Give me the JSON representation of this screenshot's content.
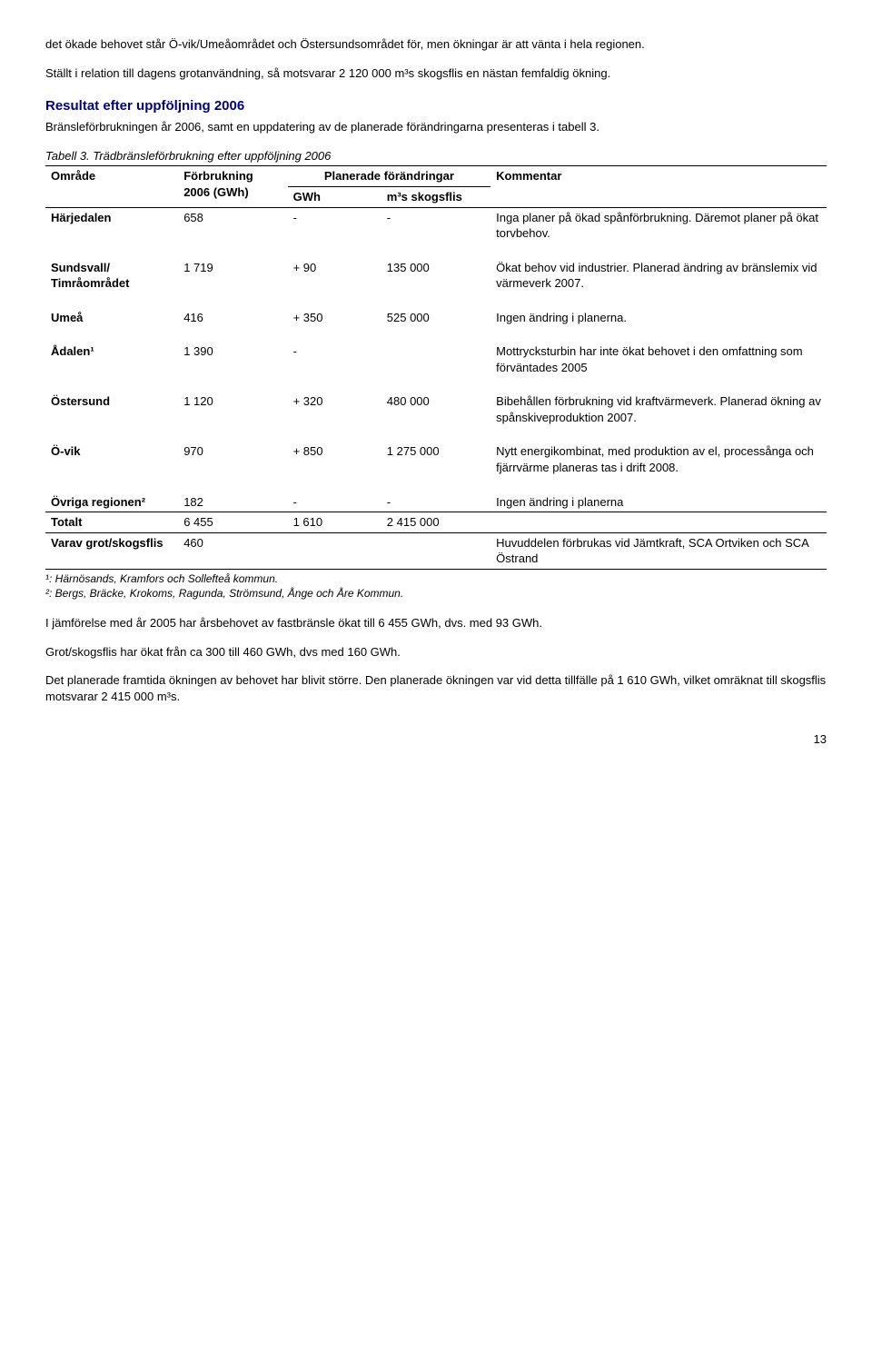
{
  "intro": {
    "p1": "det ökade behovet står Ö-vik/Umeåområdet och Östersundsområdet för, men ökningar är att vänta i hela regionen.",
    "p2": "Ställt i relation till dagens grotanvändning, så motsvarar 2 120 000 m³s skogsflis en nästan femfaldig ökning."
  },
  "section": {
    "title": "Resultat efter uppföljning 2006",
    "body": "Bränsleförbrukningen år 2006, samt en uppdatering av de planerade förändringarna presenteras i tabell 3."
  },
  "table": {
    "caption": "Tabell 3. Trädbränsleförbrukning efter uppföljning 2006",
    "head": {
      "area": "Område",
      "cons": "Förbrukning 2006 (GWh)",
      "changes": "Planerade förändringar",
      "gwh": "GWh",
      "m3s": "m³s skogsflis",
      "comment": "Kommentar"
    },
    "rows": [
      {
        "area": "Härjedalen",
        "cons": "658",
        "gwh": "-",
        "m3s": "-",
        "comment": "Inga planer på ökad spånförbrukning. Däremot planer på ökat torvbehov."
      },
      {
        "area": "Sundsvall/ Timråområdet",
        "cons": "1 719",
        "gwh": "+ 90",
        "m3s": "135 000",
        "comment": "Ökat behov vid industrier. Planerad ändring av bränslemix vid värmeverk 2007."
      },
      {
        "area": "Umeå",
        "cons": "416",
        "gwh": "+ 350",
        "m3s": "525 000",
        "comment": "Ingen ändring i planerna."
      },
      {
        "area": "Ådalen¹",
        "cons": "1 390",
        "gwh": "-",
        "m3s": "",
        "comment": "Mottrycksturbin har inte ökat behovet i den omfattning som förväntades 2005"
      },
      {
        "area": "Östersund",
        "cons": "1 120",
        "gwh": "+ 320",
        "m3s": "480 000",
        "comment": "Bibehållen förbrukning vid kraftvärmeverk. Planerad ökning av spånskiveproduktion 2007."
      },
      {
        "area": "Ö-vik",
        "cons": "970",
        "gwh": "+ 850",
        "m3s": "1 275 000",
        "comment": "Nytt energikombinat, med produktion av el, processånga och fjärrvärme planeras tas i drift 2008."
      },
      {
        "area": "Övriga regionen²",
        "cons": "182",
        "gwh": "-",
        "m3s": "-",
        "comment": "Ingen ändring i planerna"
      }
    ],
    "total": {
      "area": "Totalt",
      "cons": "6 455",
      "gwh": "1 610",
      "m3s": "2 415 000",
      "comment": ""
    },
    "varav": {
      "area": "Varav grot/skogsflis",
      "cons": "460",
      "gwh": "",
      "m3s": "",
      "comment": "Huvuddelen förbrukas vid Jämtkraft, SCA Ortviken och SCA Östrand"
    }
  },
  "footnotes": {
    "f1": "¹: Härnösands, Kramfors och Sollefteå kommun.",
    "f2": "²: Bergs, Bräcke, Krokoms, Ragunda, Strömsund, Ånge och Åre Kommun."
  },
  "after": {
    "p1": "I jämförelse med år 2005 har årsbehovet av fastbränsle ökat till 6 455 GWh, dvs. med 93 GWh.",
    "p2": "Grot/skogsflis har ökat från ca 300 till 460 GWh, dvs med 160 GWh.",
    "p3": "Det planerade framtida ökningen av behovet har blivit större. Den planerade ökningen var vid detta tillfälle på 1 610 GWh, vilket omräknat till skogsflis motsvarar 2 415 000 m³s."
  },
  "page": "13"
}
